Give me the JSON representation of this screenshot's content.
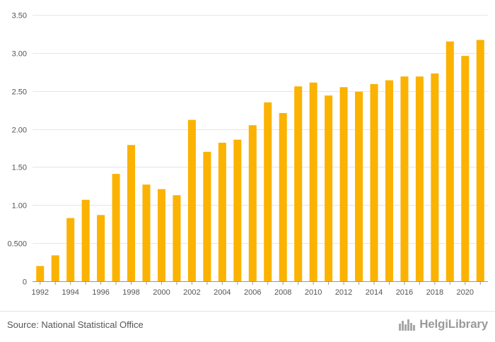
{
  "chart_data": {
    "type": "bar",
    "title": "",
    "xlabel": "",
    "ylabel": "",
    "categories": [
      "1992",
      "1993",
      "1994",
      "1995",
      "1996",
      "1997",
      "1998",
      "1999",
      "2000",
      "2001",
      "2002",
      "2003",
      "2004",
      "2005",
      "2006",
      "2007",
      "2008",
      "2009",
      "2010",
      "2011",
      "2012",
      "2013",
      "2014",
      "2015",
      "2016",
      "2017",
      "2018",
      "2019",
      "2020",
      "2021"
    ],
    "values": [
      0.2,
      0.34,
      0.83,
      1.07,
      0.87,
      1.41,
      1.79,
      1.27,
      1.21,
      1.13,
      2.12,
      1.7,
      1.82,
      1.86,
      2.05,
      2.35,
      2.21,
      2.56,
      2.61,
      2.44,
      2.55,
      2.49,
      2.59,
      2.64,
      2.69,
      2.69,
      2.73,
      3.15,
      2.96,
      3.17
    ],
    "x_tick_labels": [
      "1992",
      "1994",
      "1996",
      "1998",
      "2000",
      "2002",
      "2004",
      "2006",
      "2008",
      "2010",
      "2012",
      "2014",
      "2016",
      "2018",
      "2020"
    ],
    "y_ticks": [
      0,
      0.5,
      1.0,
      1.5,
      2.0,
      2.5,
      3.0,
      3.5
    ],
    "y_tick_labels": [
      "0",
      "0.500",
      "1.00",
      "1.50",
      "2.00",
      "2.50",
      "3.00",
      "3.50"
    ],
    "ylim": [
      0,
      3.5
    ],
    "grid": true,
    "legend": "none",
    "bar_color": "#fbb200",
    "grid_color": "#e6e6e6",
    "axis_color": "#999999"
  },
  "footer": {
    "source": "Source: National Statistical Office",
    "brand": "HelgiLibrary",
    "brand_icon": "city-skyline-icon"
  }
}
